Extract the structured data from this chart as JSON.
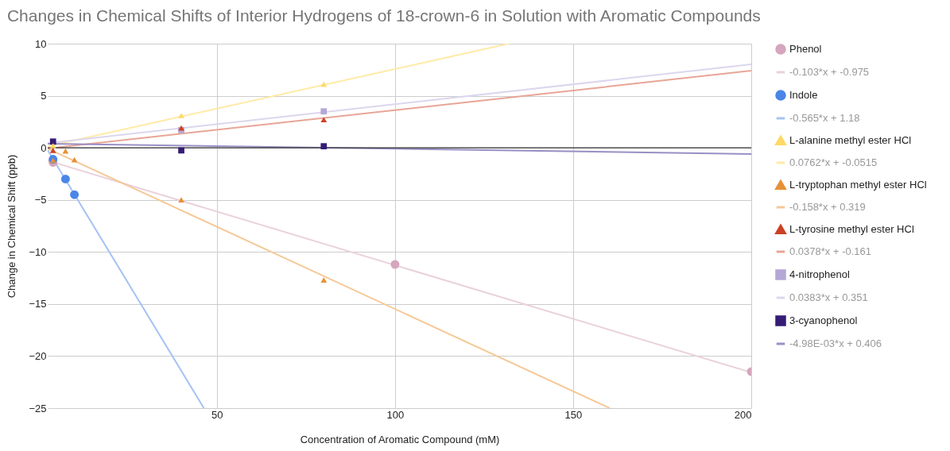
{
  "chart_data": {
    "type": "scatter",
    "title": "Changes in Chemical Shifts of Interior Hydrogens of 18-crown-6 in Solution with Aromatic Compounds",
    "xlabel": "Concentration of Aromatic Compound (mM)",
    "ylabel": "Change in Chemical Shift (ppb)",
    "xlim": [
      2.5,
      200
    ],
    "xticks": [
      50,
      100,
      150,
      200
    ],
    "ylim": [
      -25,
      10
    ],
    "yticks": [
      -25,
      -20,
      -15,
      -10,
      -5,
      0,
      5,
      10
    ],
    "grid": true,
    "legend": "right",
    "ref_lines": [
      {
        "axis": "y",
        "value": 0,
        "color": "#333333"
      }
    ],
    "series": [
      {
        "name": "Phenol",
        "marker": "circle",
        "color": "#d5a6bd",
        "x": [
          4,
          100,
          200
        ],
        "values": [
          -1.4,
          -11.2,
          -21.5
        ]
      },
      {
        "name": "-0.103*x + -0.975",
        "type": "line",
        "color": "#ead1dc",
        "x": [
          2.5,
          200
        ],
        "values": [
          -1.23,
          -21.58
        ]
      },
      {
        "name": "Indole",
        "marker": "circle",
        "color": "#4a86e8",
        "x": [
          4,
          7.5,
          10
        ],
        "values": [
          -1.1,
          -3.0,
          -4.5
        ]
      },
      {
        "name": "-0.565*x + 1.18",
        "type": "line",
        "color": "#a4c2f4",
        "x": [
          2.5,
          46.34
        ],
        "values": [
          -0.23,
          -25
        ]
      },
      {
        "name": "L-alanine methyl ester HCl",
        "marker": "triangle",
        "color": "#ffd966",
        "x": [
          4,
          40,
          80
        ],
        "values": [
          0.2,
          3.1,
          6.1
        ]
      },
      {
        "name": "0.0762*x + -0.0515",
        "type": "line",
        "color": "#ffeaa6",
        "x": [
          2.5,
          131.9
        ],
        "values": [
          0.14,
          10
        ]
      },
      {
        "name": "L-tryptophan methyl ester HCl",
        "marker": "triangle",
        "color": "#e69138",
        "x": [
          4,
          7.5,
          10,
          40,
          80
        ],
        "values": [
          -1.2,
          -0.3,
          -1.15,
          -5.0,
          -12.7
        ]
      },
      {
        "name": "-0.158*x + 0.319",
        "type": "line",
        "color": "#f6c896",
        "x": [
          2.5,
          160.25
        ],
        "values": [
          -0.08,
          -25
        ]
      },
      {
        "name": "L-tyrosine methyl ester HCl",
        "marker": "triangle",
        "color": "#cc4125",
        "x": [
          4,
          40,
          80
        ],
        "values": [
          -0.25,
          1.9,
          2.7
        ]
      },
      {
        "name": "0.0378*x + -0.161",
        "type": "line",
        "color": "#e8a596",
        "x": [
          2.5,
          200
        ],
        "values": [
          -0.07,
          7.4
        ]
      },
      {
        "name": "4-nitrophenol",
        "marker": "square",
        "color": "#b4a7d6",
        "x": [
          40,
          80
        ],
        "values": [
          1.7,
          3.5
        ]
      },
      {
        "name": "0.0383*x + 0.351",
        "type": "line",
        "color": "#dcd6ee",
        "x": [
          2.5,
          200
        ],
        "values": [
          0.45,
          8.01
        ]
      },
      {
        "name": "3-cyanophenol",
        "marker": "square",
        "color": "#351c75",
        "x": [
          4,
          40,
          80
        ],
        "values": [
          0.6,
          -0.25,
          0.15
        ]
      },
      {
        "name": "-4.98E-03*x + 0.406",
        "type": "line",
        "color": "#9a8fc4",
        "x": [
          2.5,
          200
        ],
        "values": [
          0.39,
          -0.59
        ]
      }
    ]
  }
}
